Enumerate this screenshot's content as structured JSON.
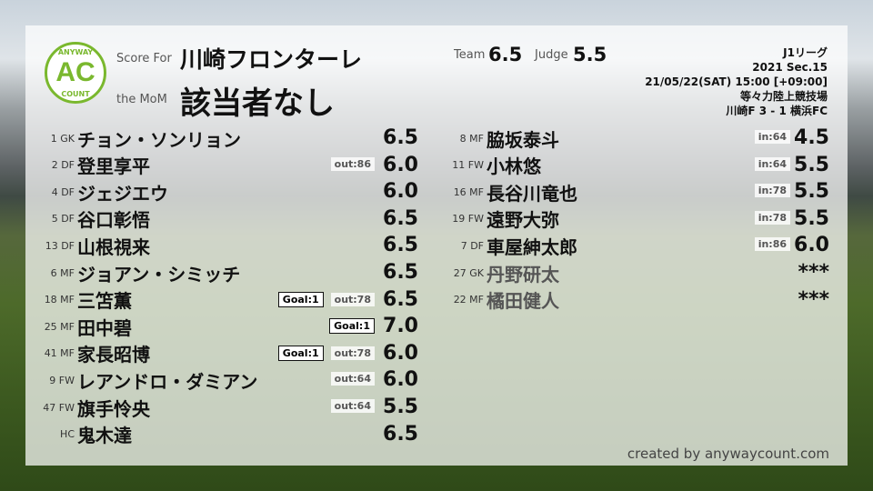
{
  "logo": {
    "top": "ANYWAY",
    "main": "AC",
    "bottom": "COUNT",
    "color": "#7ab82e"
  },
  "header": {
    "score_for_label": "Score For",
    "team": "川崎フロンターレ",
    "mom_label": "the MoM",
    "mom": "該当者なし",
    "team_label": "Team",
    "team_score": "6.5",
    "judge_label": "Judge",
    "judge_score": "5.5"
  },
  "match": {
    "league": "J1リーグ",
    "section": "2021 Sec.15",
    "datetime": "21/05/22(SAT) 15:00 [+09:00]",
    "venue": "等々力陸上競技場",
    "result": "川崎F 3 - 1 横浜FC"
  },
  "left_players": [
    {
      "num": "1 GK",
      "name": "チョン・ソンリョン",
      "goal": "",
      "sub": "",
      "score": "6.5"
    },
    {
      "num": "2 DF",
      "name": "登里享平",
      "goal": "",
      "sub": "out:86",
      "score": "6.0"
    },
    {
      "num": "4 DF",
      "name": "ジェジエウ",
      "goal": "",
      "sub": "",
      "score": "6.0"
    },
    {
      "num": "5 DF",
      "name": "谷口彰悟",
      "goal": "",
      "sub": "",
      "score": "6.5"
    },
    {
      "num": "13 DF",
      "name": "山根視来",
      "goal": "",
      "sub": "",
      "score": "6.5"
    },
    {
      "num": "6 MF",
      "name": "ジョアン・シミッチ",
      "goal": "",
      "sub": "",
      "score": "6.5"
    },
    {
      "num": "18 MF",
      "name": "三笘薫",
      "goal": "Goal:1",
      "sub": "out:78",
      "score": "6.5"
    },
    {
      "num": "25 MF",
      "name": "田中碧",
      "goal": "Goal:1",
      "sub": "",
      "score": "7.0"
    },
    {
      "num": "41 MF",
      "name": "家長昭博",
      "goal": "Goal:1",
      "sub": "out:78",
      "score": "6.0"
    },
    {
      "num": "9 FW",
      "name": "レアンドロ・ダミアン",
      "goal": "",
      "sub": "out:64",
      "score": "6.0"
    },
    {
      "num": "47 FW",
      "name": "旗手怜央",
      "goal": "",
      "sub": "out:64",
      "score": "5.5"
    },
    {
      "num": "HC",
      "name": "鬼木達",
      "goal": "",
      "sub": "",
      "score": "6.5"
    }
  ],
  "right_players": [
    {
      "num": "8 MF",
      "name": "脇坂泰斗",
      "sub": "in:64",
      "score": "4.5",
      "played": true
    },
    {
      "num": "11 FW",
      "name": "小林悠",
      "sub": "in:64",
      "score": "5.5",
      "played": true
    },
    {
      "num": "16 MF",
      "name": "長谷川竜也",
      "sub": "in:78",
      "score": "5.5",
      "played": true
    },
    {
      "num": "19 FW",
      "name": "遠野大弥",
      "sub": "in:78",
      "score": "5.5",
      "played": true
    },
    {
      "num": "7 DF",
      "name": "車屋紳太郎",
      "sub": "in:86",
      "score": "6.0",
      "played": true
    },
    {
      "num": "27 GK",
      "name": "丹野研太",
      "sub": "",
      "score": "***",
      "played": false
    },
    {
      "num": "22 MF",
      "name": "橘田健人",
      "sub": "",
      "score": "***",
      "played": false
    }
  ],
  "credit": "created by anywaycount.com"
}
